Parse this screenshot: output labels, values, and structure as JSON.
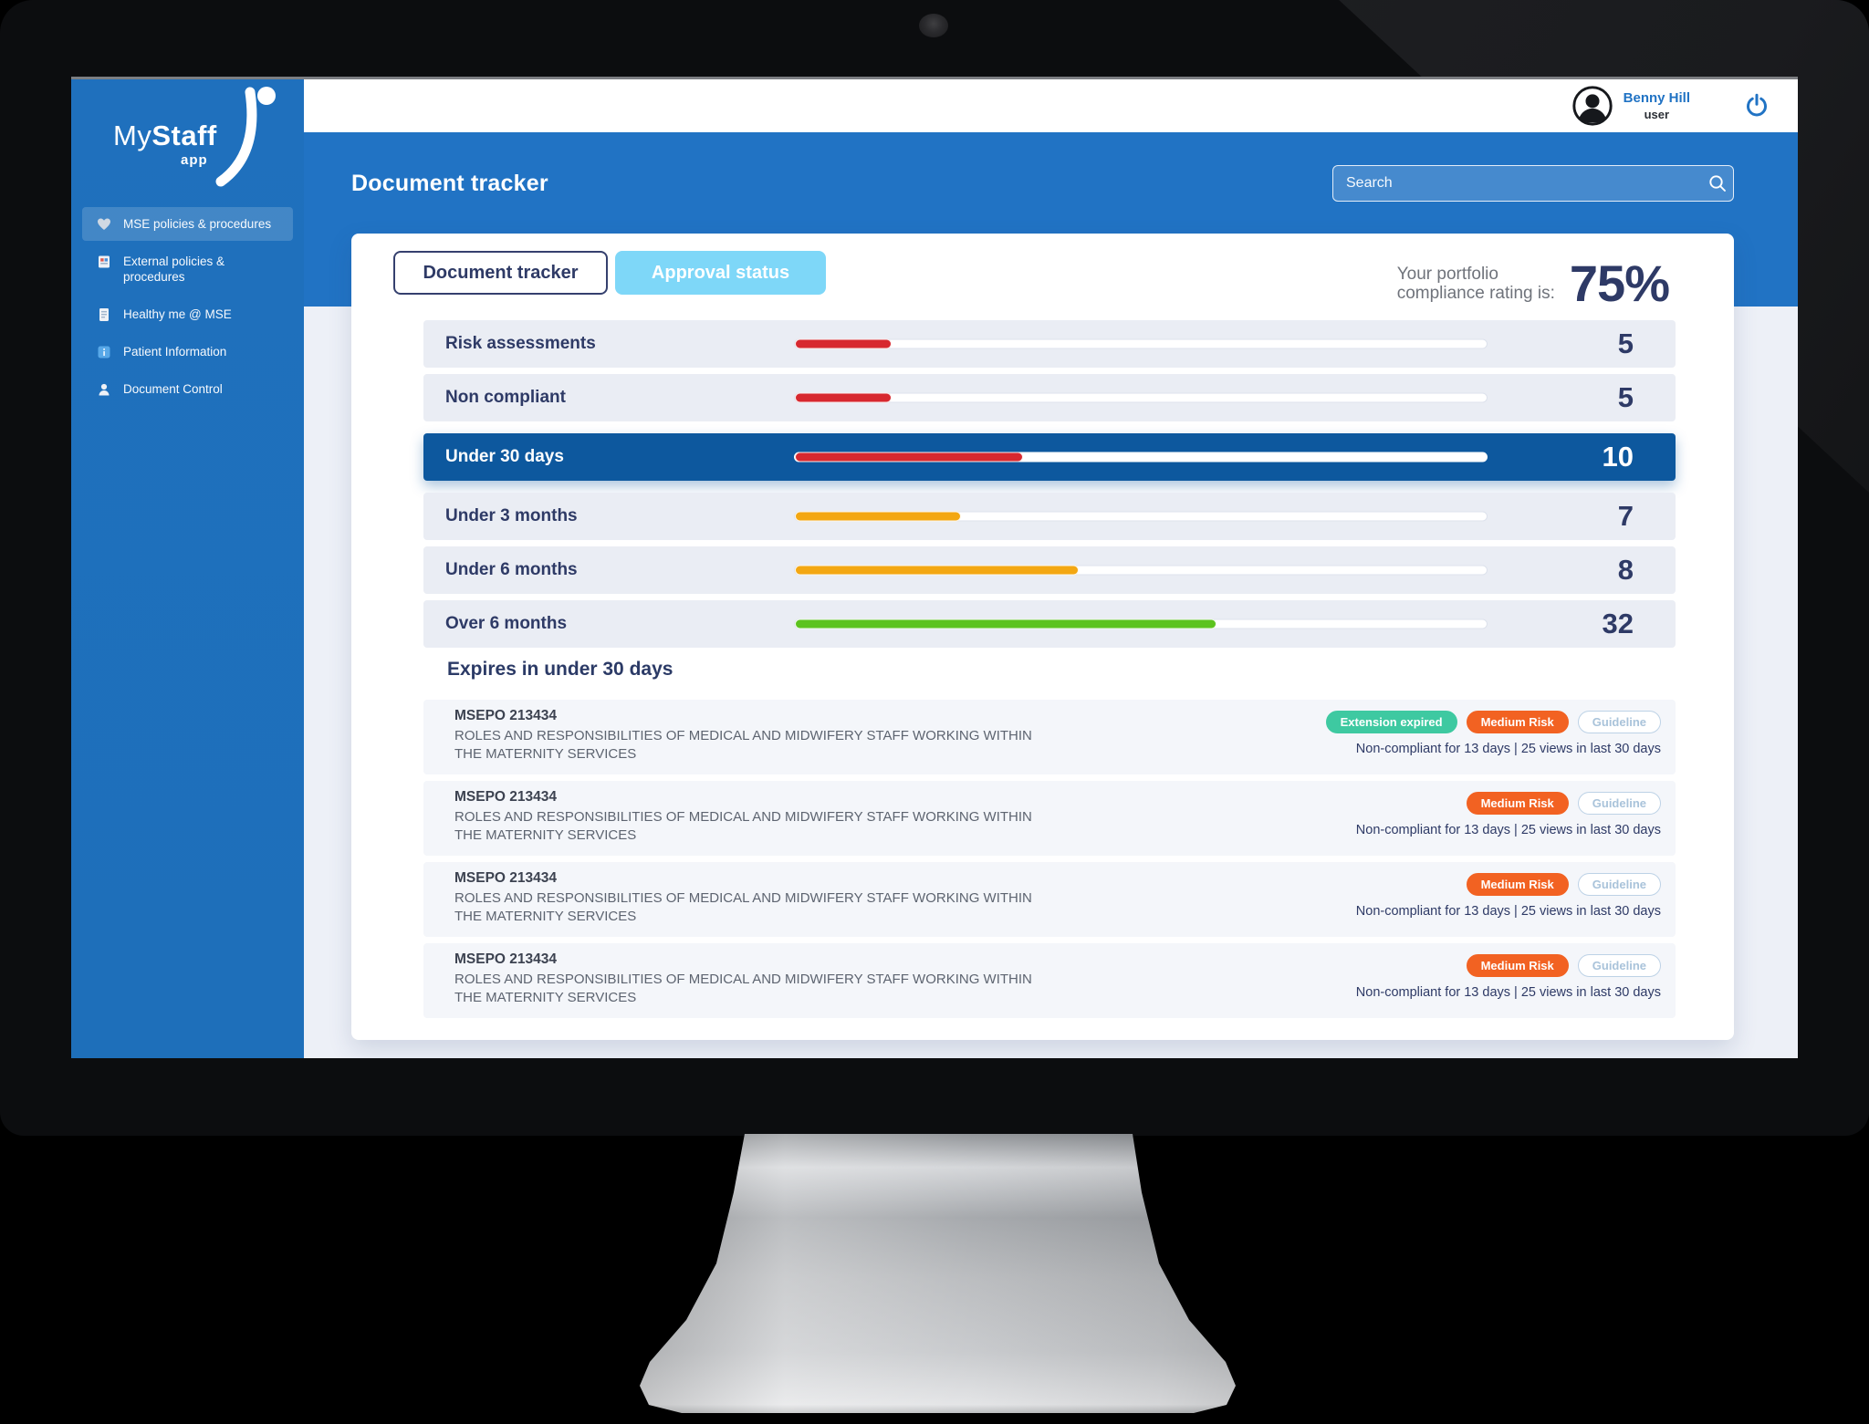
{
  "logo": {
    "text_light": "My",
    "text_bold": "Staff",
    "badge": "app"
  },
  "user": {
    "name": "Benny Hill",
    "role": "user"
  },
  "sidebar": {
    "items": [
      {
        "label": "MSE policies & procedures",
        "icon": "heart-icon",
        "active": true
      },
      {
        "label": "External policies & procedures",
        "icon": "clipboard-icon",
        "active": false
      },
      {
        "label": "Healthy me @ MSE",
        "icon": "document-icon",
        "active": false
      },
      {
        "label": "Patient Information",
        "icon": "info-square-icon",
        "active": false
      },
      {
        "label": "Document Control",
        "icon": "person-icon",
        "active": false
      }
    ]
  },
  "header": {
    "title": "Document tracker",
    "search_placeholder": "Search"
  },
  "tabs": {
    "document_tracker": "Document tracker",
    "approval_status": "Approval status"
  },
  "compliance": {
    "label_line1": "Your portfolio",
    "label_line2": "compliance rating is:",
    "value": "75%"
  },
  "tracker": {
    "rows": [
      {
        "label": "Risk assessments",
        "count": "5",
        "pct": 14,
        "color": "#d7282f",
        "highlight": false
      },
      {
        "label": "Non compliant",
        "count": "5",
        "pct": 14,
        "color": "#d7282f",
        "highlight": false
      },
      {
        "label": "Under 30 days",
        "count": "10",
        "pct": 33,
        "color": "#d7282f",
        "highlight": true
      },
      {
        "label": "Under 3 months",
        "count": "7",
        "pct": 24,
        "color": "#f3a712",
        "highlight": false
      },
      {
        "label": "Under 6 months",
        "count": "8",
        "pct": 41,
        "color": "#f3a712",
        "highlight": false
      },
      {
        "label": "Over 6 months",
        "count": "32",
        "pct": 61,
        "color": "#5cc31e",
        "highlight": false
      }
    ]
  },
  "badges": {
    "extension_expired": {
      "label": "Extension expired",
      "bg": "#3ec9a1",
      "fg": "#ffffff",
      "border": "#3ec9a1"
    },
    "medium_risk": {
      "label": "Medium Risk",
      "bg": "#f26222",
      "fg": "#ffffff",
      "border": "#f26222"
    },
    "guideline": {
      "label": "Guideline",
      "bg": "#ffffff",
      "fg": "#a9c3da",
      "border": "#bdd2e6"
    }
  },
  "expires": {
    "heading": "Expires in under 30 days",
    "items": [
      {
        "code": "MSEPO 213434",
        "title": "ROLES AND RESPONSIBILITIES OF MEDICAL AND MIDWIFERY STAFF WORKING WITHIN THE MATERNITY SERVICES",
        "badges": [
          "extension_expired",
          "medium_risk",
          "guideline"
        ],
        "stats": "Non-compliant for 13 days | 25 views in last 30 days"
      },
      {
        "code": "MSEPO 213434",
        "title": "ROLES AND RESPONSIBILITIES OF MEDICAL AND MIDWIFERY STAFF WORKING WITHIN THE MATERNITY SERVICES",
        "badges": [
          "medium_risk",
          "guideline"
        ],
        "stats": "Non-compliant for 13 days | 25 views in last 30 days"
      },
      {
        "code": "MSEPO 213434",
        "title": "ROLES AND RESPONSIBILITIES OF MEDICAL AND MIDWIFERY STAFF WORKING WITHIN THE MATERNITY SERVICES",
        "badges": [
          "medium_risk",
          "guideline"
        ],
        "stats": "Non-compliant for 13 days | 25 views in last 30 days"
      },
      {
        "code": "MSEPO 213434",
        "title": "ROLES AND RESPONSIBILITIES OF MEDICAL AND MIDWIFERY STAFF WORKING WITHIN THE MATERNITY SERVICES",
        "badges": [
          "medium_risk",
          "guideline"
        ],
        "stats": "Non-compliant for 13 days | 25 views in last 30 days"
      }
    ]
  },
  "colors": {
    "sidebar_blue": "#1e6fba",
    "banner_blue": "#2173c4",
    "highlight_navy": "#0d589e",
    "navy_text": "#2e3a66",
    "approval_tab_blue": "#7ed7f8",
    "accent_link_blue": "#2173c4"
  }
}
